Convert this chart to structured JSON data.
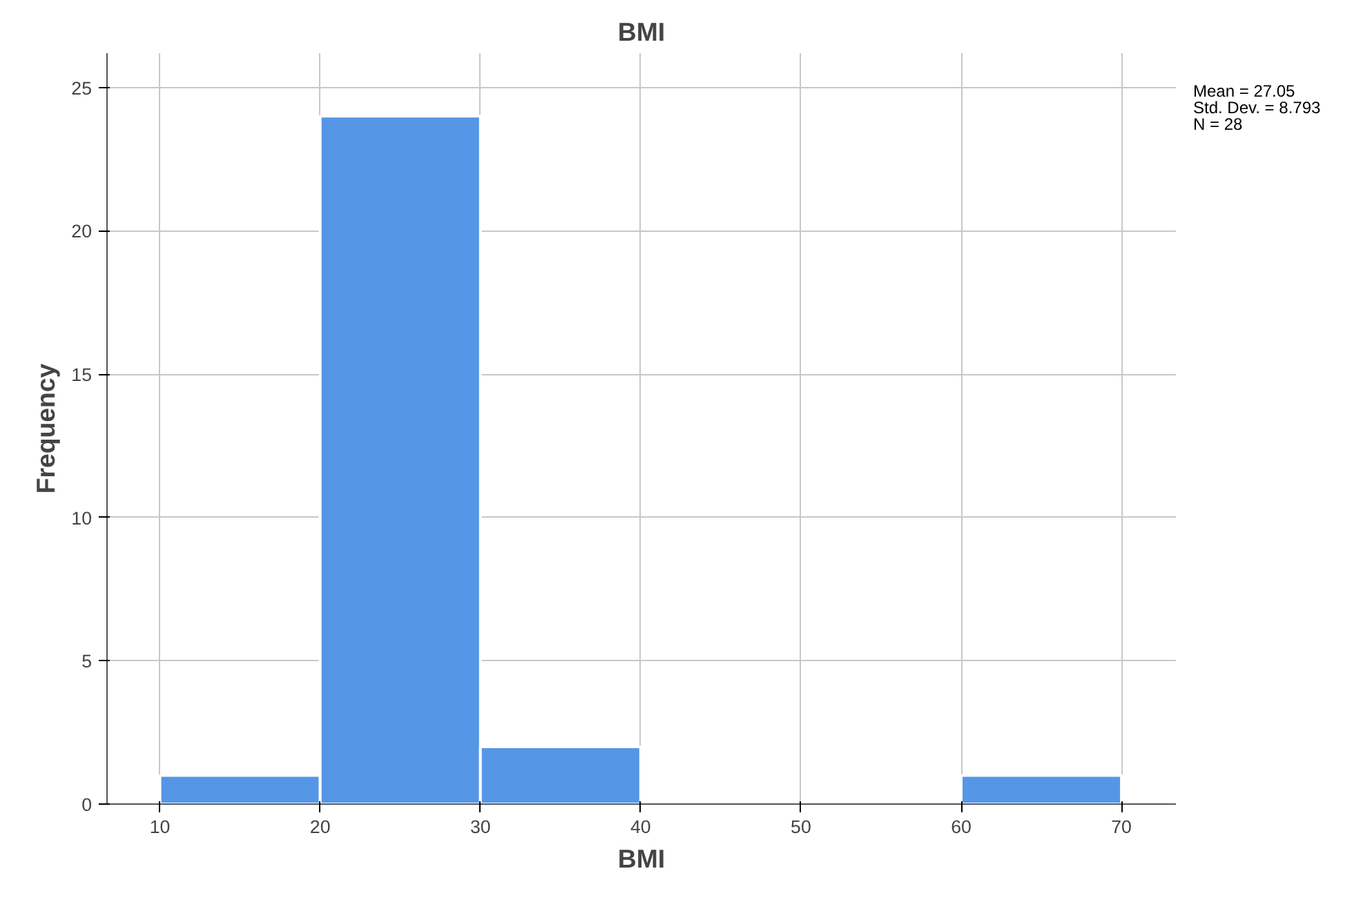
{
  "chart_data": {
    "type": "histogram",
    "title": "BMI",
    "xlabel": "BMI",
    "ylabel": "Frequency",
    "bins": [
      10,
      20,
      30,
      40,
      50,
      60,
      70
    ],
    "values": [
      1,
      24,
      2,
      0,
      0,
      1
    ],
    "color": "#5596e6",
    "xlim": [
      6.7,
      73.4
    ],
    "ylim": [
      0,
      26.2
    ],
    "xticks": [
      10,
      20,
      30,
      40,
      50,
      60,
      70
    ],
    "yticks": [
      0,
      5,
      10,
      15,
      20,
      25
    ],
    "grid": true,
    "annotations": [
      "Mean = 27.05",
      "Std. Dev. = 8.793",
      "N = 28"
    ]
  }
}
